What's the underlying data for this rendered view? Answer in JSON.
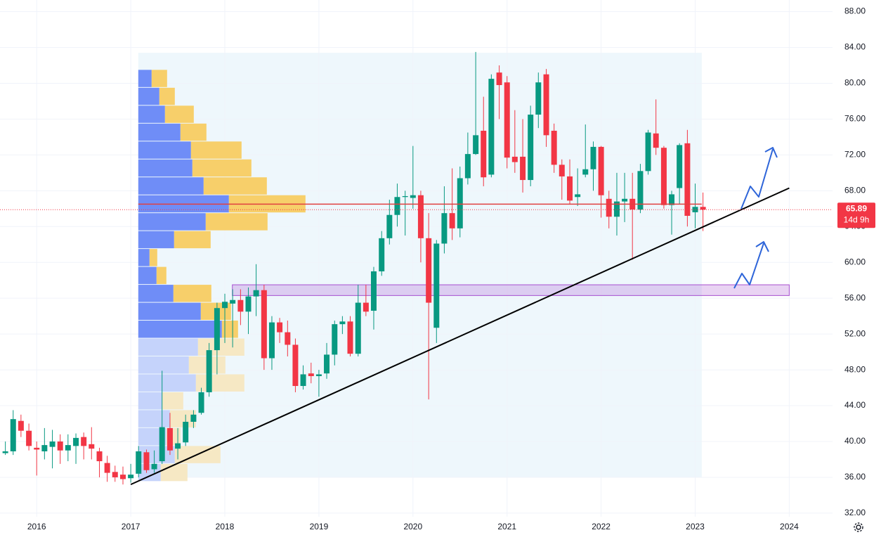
{
  "chart_data": {
    "type": "candlestick",
    "xlim": [
      2015.61,
      2024.46
    ],
    "ylim": [
      31.6,
      89.3
    ],
    "xticks": [
      2016,
      2017,
      2018,
      2019,
      2020,
      2021,
      2022,
      2023,
      2024
    ],
    "yticks": [
      {
        "value": 32,
        "label": "32.00"
      },
      {
        "value": 36,
        "label": "36.00"
      },
      {
        "value": 40,
        "label": "40.00"
      },
      {
        "value": 44,
        "label": "44.00"
      },
      {
        "value": 48,
        "label": "48.00"
      },
      {
        "value": 52,
        "label": "52.00"
      },
      {
        "value": 56,
        "label": "56.00"
      },
      {
        "value": 60,
        "label": "60.00"
      },
      {
        "value": 64,
        "label": "64.00"
      },
      {
        "value": 68,
        "label": "68.00"
      },
      {
        "value": 72,
        "label": "72.00"
      },
      {
        "value": 76,
        "label": "76.00"
      },
      {
        "value": 80,
        "label": "80.00"
      },
      {
        "value": 84,
        "label": "84.00"
      },
      {
        "value": 88,
        "label": "88.00"
      }
    ],
    "grid": true,
    "up_color": "#089981",
    "down_color": "#f23645",
    "x": [
      2015.667,
      2015.75,
      2015.833,
      2015.917,
      2016.0,
      2016.083,
      2016.167,
      2016.25,
      2016.333,
      2016.417,
      2016.5,
      2016.583,
      2016.667,
      2016.75,
      2016.833,
      2016.917,
      2017.0,
      2017.083,
      2017.167,
      2017.25,
      2017.333,
      2017.417,
      2017.5,
      2017.583,
      2017.667,
      2017.75,
      2017.833,
      2017.917,
      2018.0,
      2018.083,
      2018.167,
      2018.25,
      2018.333,
      2018.417,
      2018.5,
      2018.583,
      2018.667,
      2018.75,
      2018.833,
      2018.917,
      2019.0,
      2019.083,
      2019.167,
      2019.25,
      2019.333,
      2019.417,
      2019.5,
      2019.583,
      2019.667,
      2019.75,
      2019.833,
      2019.917,
      2020.0,
      2020.083,
      2020.167,
      2020.25,
      2020.333,
      2020.417,
      2020.5,
      2020.583,
      2020.667,
      2020.75,
      2020.833,
      2020.917,
      2021.0,
      2021.083,
      2021.167,
      2021.25,
      2021.333,
      2021.417,
      2021.5,
      2021.583,
      2021.667,
      2021.75,
      2021.833,
      2021.917,
      2022.0,
      2022.083,
      2022.167,
      2022.25,
      2022.333,
      2022.417,
      2022.5,
      2022.583,
      2022.667,
      2022.75,
      2022.833,
      2022.917,
      2023.0,
      2023.083
    ],
    "open": [
      38.7,
      38.9,
      42.3,
      41.2,
      39.3,
      38.9,
      39.4,
      40,
      39,
      39.5,
      40.5,
      39.7,
      38.9,
      37.6,
      36.6,
      36.3,
      35.9,
      36.4,
      38.8,
      36.9,
      37.8,
      41.5,
      39.2,
      39.9,
      42.2,
      43.2,
      45.5,
      50.2,
      54.9,
      55.4,
      55.8,
      54.5,
      56.2,
      56.9,
      49.3,
      53.3,
      52.2,
      50.8,
      46.2,
      47.6,
      47.3,
      47.6,
      49.7,
      53.1,
      53.4,
      49.8,
      55.5,
      54.6,
      59,
      62.7,
      65.3,
      67.3,
      67.2,
      67.5,
      62.7,
      52.7,
      62.1,
      65.5,
      63.8,
      69.4,
      72.1,
      74.7,
      69.8,
      81.2,
      80.1,
      71.8,
      71.8,
      69.2,
      76.5,
      81,
      74.7,
      70.9,
      69.6,
      67.3,
      69.8,
      70.4,
      72.9,
      67.1,
      65.1,
      66.8,
      67.1,
      65.9,
      70.2,
      74.4,
      72.8,
      66.4,
      68.3,
      73.3,
      65.6,
      66.2
    ],
    "high": [
      40,
      43.5,
      43,
      42,
      40,
      41.5,
      41.3,
      40.8,
      40.8,
      40.9,
      41,
      41.6,
      39.3,
      38.4,
      37.3,
      37.2,
      37.5,
      39.5,
      39.1,
      39,
      47.9,
      43.2,
      41.5,
      43,
      43.5,
      46,
      51,
      55.5,
      56.5,
      57,
      57,
      57.2,
      59.8,
      57.5,
      54,
      53.8,
      53.5,
      51.5,
      48.5,
      48.8,
      48,
      51,
      53.5,
      54,
      54,
      57.5,
      57.5,
      59.5,
      63.5,
      67,
      68.8,
      68,
      73,
      68,
      65.5,
      62.5,
      68.5,
      70.5,
      70.7,
      74.5,
      83.5,
      78.5,
      81,
      82,
      80.8,
      77,
      76,
      77.5,
      81.2,
      81.6,
      75.5,
      71.5,
      71.5,
      70.5,
      75.4,
      73.5,
      73,
      68,
      70,
      70,
      70,
      71,
      74.8,
      78.2,
      73,
      68,
      73.3,
      74.8,
      68.8,
      67.8
    ],
    "low": [
      38.5,
      38.5,
      40.5,
      39,
      36.2,
      38,
      37,
      37.5,
      37.8,
      37.5,
      38,
      38,
      36,
      35.5,
      35.5,
      35.2,
      35.4,
      36,
      36.5,
      36.5,
      37.5,
      38.5,
      38,
      39.5,
      41.5,
      43,
      45,
      47.5,
      51,
      50.5,
      53,
      52,
      54,
      48,
      48,
      51,
      49.5,
      45.5,
      45.8,
      46.5,
      45,
      47,
      48.5,
      52,
      49.5,
      49.5,
      54,
      52.5,
      58.5,
      62,
      64,
      63,
      66,
      60,
      44.7,
      51,
      61,
      62.5,
      62.8,
      68.7,
      72,
      68.5,
      69.5,
      76,
      70.5,
      70,
      67.8,
      68.5,
      75,
      72.9,
      70,
      67,
      66.5,
      66.3,
      69.5,
      68,
      65,
      63.8,
      63,
      64.5,
      60.3,
      65.5,
      69.8,
      72,
      66,
      63.1,
      66.5,
      64,
      63.8,
      63.5
    ],
    "close": [
      38.9,
      42.5,
      41.2,
      39.5,
      39.1,
      39.6,
      40,
      39,
      39.6,
      40.4,
      39.5,
      39.2,
      37.8,
      36.5,
      36,
      35.8,
      36.3,
      38.9,
      36.8,
      37.5,
      41.6,
      39,
      39.8,
      42.2,
      43,
      45.5,
      50.2,
      54.9,
      55.6,
      55.8,
      54.5,
      56.2,
      56.9,
      49.3,
      53.3,
      52.2,
      50.8,
      46.2,
      47.5,
      47.3,
      47.5,
      49.7,
      53.1,
      53.4,
      49.8,
      55.5,
      54.5,
      59,
      62.7,
      65.3,
      67.3,
      67.4,
      67.5,
      62.7,
      55.5,
      62.1,
      65.5,
      63.8,
      69.4,
      72.1,
      74.2,
      69.5,
      80.5,
      79.8,
      71.7,
      71.2,
      69.2,
      76.5,
      80.1,
      74.2,
      70.9,
      69.6,
      66.9,
      67.6,
      70.4,
      72.9,
      67.5,
      65.1,
      66.8,
      67.1,
      65.9,
      70.2,
      74.5,
      72.8,
      66.4,
      67.6,
      73.1,
      65.2,
      66.2,
      65.89
    ],
    "last_price": 65.89,
    "countdown": "14d 9h",
    "volume_profile": {
      "bins": [
        81.5,
        79.5,
        77.5,
        75.5,
        73.5,
        71.5,
        69.5,
        67.5,
        65.5,
        63.5,
        61.5,
        59.5,
        57.5,
        55.5,
        53.5,
        51.5,
        49.5,
        47.5,
        45.5,
        43.5,
        41.5,
        39.5,
        37.5,
        35.5
      ],
      "up": [
        19,
        30,
        38,
        60,
        75,
        77,
        93,
        129,
        96,
        51,
        16,
        26,
        50,
        89,
        119,
        85,
        72,
        82,
        34,
        45,
        40,
        52,
        32
      ],
      "down": [
        22,
        22,
        41,
        37,
        72,
        84,
        90,
        109,
        88,
        52,
        11,
        14,
        54,
        43,
        23,
        66,
        52,
        69,
        30,
        37,
        20,
        65,
        38
      ],
      "value_area": [
        51.5,
        81.5
      ],
      "poc": 66.5,
      "xlim": [
        2017.08,
        2023.07
      ],
      "ylim": [
        36,
        83.4
      ],
      "up_color": "#6f8df7",
      "down_color": "#f7cf6a",
      "up_color_outside": "#c5d3fb",
      "down_color_outside": "#f6e8c4",
      "poc_color": "#e04040"
    },
    "zone": {
      "xlim": [
        2018.08,
        2024.0
      ],
      "ylim": [
        56.3,
        57.5
      ],
      "color": "#a74fd0"
    },
    "trendline": {
      "x": [
        2017.0,
        2024.0
      ],
      "y": [
        35.2,
        68.3
      ],
      "color": "#000000"
    }
  }
}
